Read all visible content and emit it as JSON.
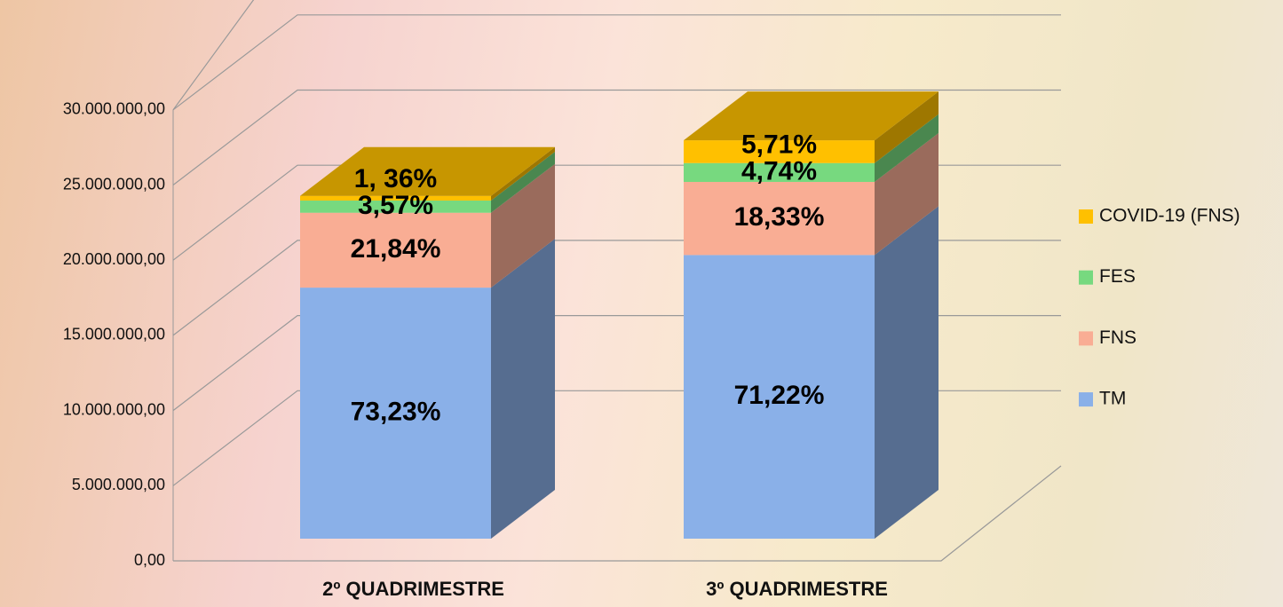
{
  "chart_data": {
    "type": "bar3d_stacked",
    "categories": [
      "2º QUADRIMESTRE",
      "3º QUADRIMESTRE"
    ],
    "series": [
      {
        "name": "TM",
        "color": "#8ab0e8",
        "values": [
          16700000,
          18870000
        ],
        "value_labels": [
          "73,23%",
          "71,22%"
        ]
      },
      {
        "name": "FNS",
        "color": "#f9ad94",
        "values": [
          4980000,
          4860000
        ],
        "value_labels": [
          "21,84%",
          "18,33%"
        ]
      },
      {
        "name": "FES",
        "color": "#77d97f",
        "values": [
          814000,
          1256000
        ],
        "value_labels": [
          "3,57%",
          "4,74%"
        ]
      },
      {
        "name": "COVID-19 (FNS)",
        "color": "#ffc000",
        "values": [
          310000,
          1513000
        ],
        "value_labels": [
          "1, 36%",
          "5,71%"
        ]
      }
    ],
    "ylim": [
      0,
      35000000
    ],
    "yticks": [
      {
        "value": 0,
        "label": "0,00"
      },
      {
        "value": 5000000,
        "label": "5.000.000,00"
      },
      {
        "value": 10000000,
        "label": "10.000.000,00"
      },
      {
        "value": 15000000,
        "label": "15.000.000,00"
      },
      {
        "value": 20000000,
        "label": "20.000.000,00"
      },
      {
        "value": 25000000,
        "label": "25.000.000,00"
      },
      {
        "value": 30000000,
        "label": "30.000.000,00"
      }
    ],
    "grid": true,
    "legend": "right"
  }
}
